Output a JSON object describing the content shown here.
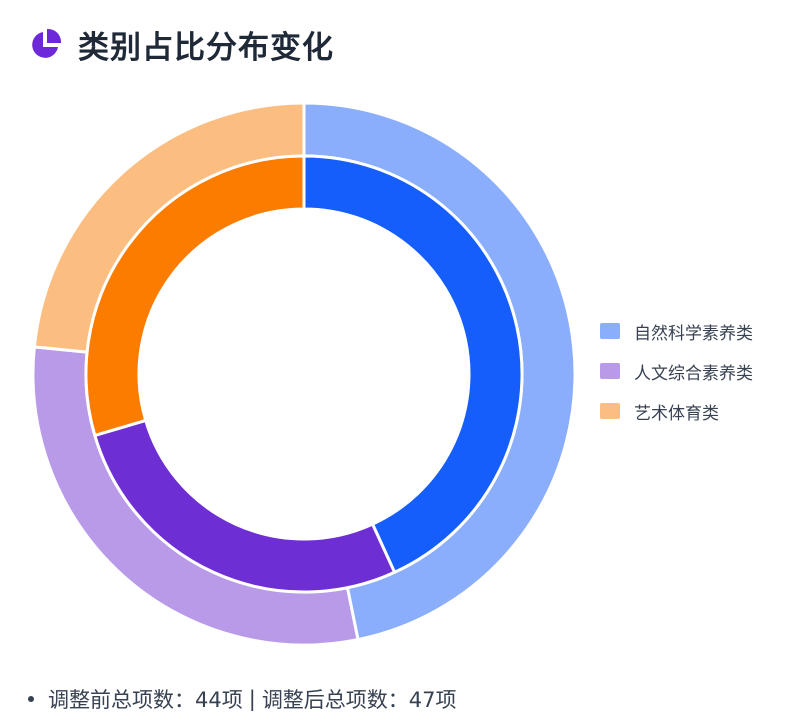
{
  "header": {
    "title": "类别占比分布变化",
    "icon": "pie-chart-icon",
    "icon_color": "#6d28d9"
  },
  "chart_data": {
    "type": "pie",
    "variant": "nested-donut",
    "title": "类别占比分布变化",
    "legend_position": "right",
    "categories": [
      "自然科学素养类",
      "人文综合素养类",
      "艺术体育类"
    ],
    "series": [
      {
        "ring": "outer",
        "values": [
          22,
          14,
          11
        ],
        "colors": [
          "#8aaefc",
          "#b89ae8",
          "#fcbd80"
        ]
      },
      {
        "ring": "inner",
        "values": [
          19,
          12,
          13
        ],
        "colors": [
          "#155efc",
          "#6d2ed3",
          "#fc7c00"
        ]
      }
    ]
  },
  "legend": {
    "items": [
      {
        "label": "自然科学素养类",
        "color": "#8aaefc"
      },
      {
        "label": "人文综合素养类",
        "color": "#b89ae8"
      },
      {
        "label": "艺术体育类",
        "color": "#fcbd80"
      }
    ]
  },
  "footer": {
    "before": "调整前总项数：44项",
    "separator": "|",
    "after": "调整后总项数：47项"
  }
}
